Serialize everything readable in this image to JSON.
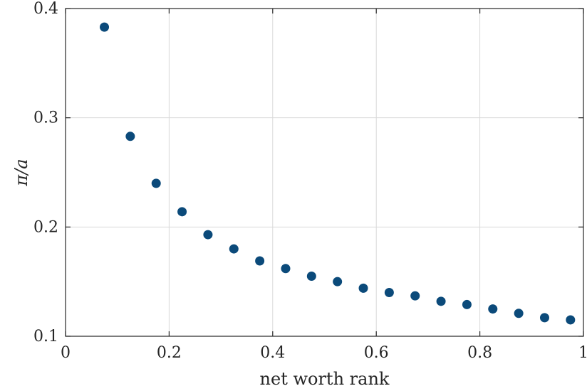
{
  "chart_data": {
    "type": "scatter",
    "xlabel": "net worth rank",
    "ylabel": "π/a",
    "xlim": [
      0,
      1
    ],
    "ylim": [
      0.1,
      0.4
    ],
    "xticks": [
      0,
      0.2,
      0.4,
      0.6,
      0.8,
      1
    ],
    "xtick_labels": [
      "0",
      "0.2",
      "0.4",
      "0.6",
      "0.8",
      "1"
    ],
    "yticks": [
      0.1,
      0.2,
      0.3,
      0.4
    ],
    "ytick_labels": [
      "0.1",
      "0.2",
      "0.3",
      "0.4"
    ],
    "grid": true,
    "marker_color": "#0b4a7a",
    "series": [
      {
        "x": [
          0.075,
          0.125,
          0.175,
          0.225,
          0.275,
          0.325,
          0.375,
          0.425,
          0.475,
          0.525,
          0.575,
          0.625,
          0.675,
          0.725,
          0.775,
          0.825,
          0.875,
          0.925,
          0.975
        ],
        "y": [
          0.383,
          0.283,
          0.24,
          0.214,
          0.193,
          0.18,
          0.169,
          0.162,
          0.155,
          0.15,
          0.144,
          0.14,
          0.137,
          0.132,
          0.129,
          0.125,
          0.121,
          0.117,
          0.115
        ]
      }
    ]
  }
}
